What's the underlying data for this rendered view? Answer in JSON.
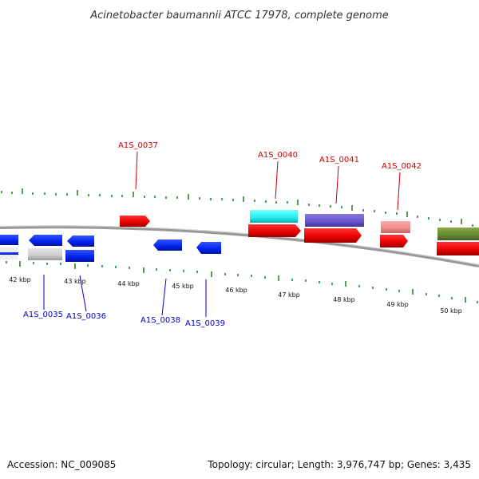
{
  "title": "Acinetobacter baumannii ATCC 17978, complete genome",
  "footer": {
    "accession": "Accession: NC_009085",
    "summary": "Topology: circular; Length: 3,976,747 bp; Genes: 3,435"
  },
  "kbp_labels": [
    "42 kbp",
    "43 kbp",
    "44 kbp",
    "45 kbp",
    "46 kbp",
    "47 kbp",
    "48 kbp",
    "49 kbp",
    "50 kbp"
  ],
  "gene_labels": [
    "A1S_0037",
    "A1S_0040",
    "A1S_0041",
    "A1S_0042",
    "A1S_0035",
    "A1S_0036",
    "A1S_0038",
    "A1S_0039"
  ],
  "colors": {
    "forward_label": "#cc0000",
    "reverse_label": "#0000cc",
    "tick": "#1a7a1a",
    "backbone": "#888888"
  }
}
